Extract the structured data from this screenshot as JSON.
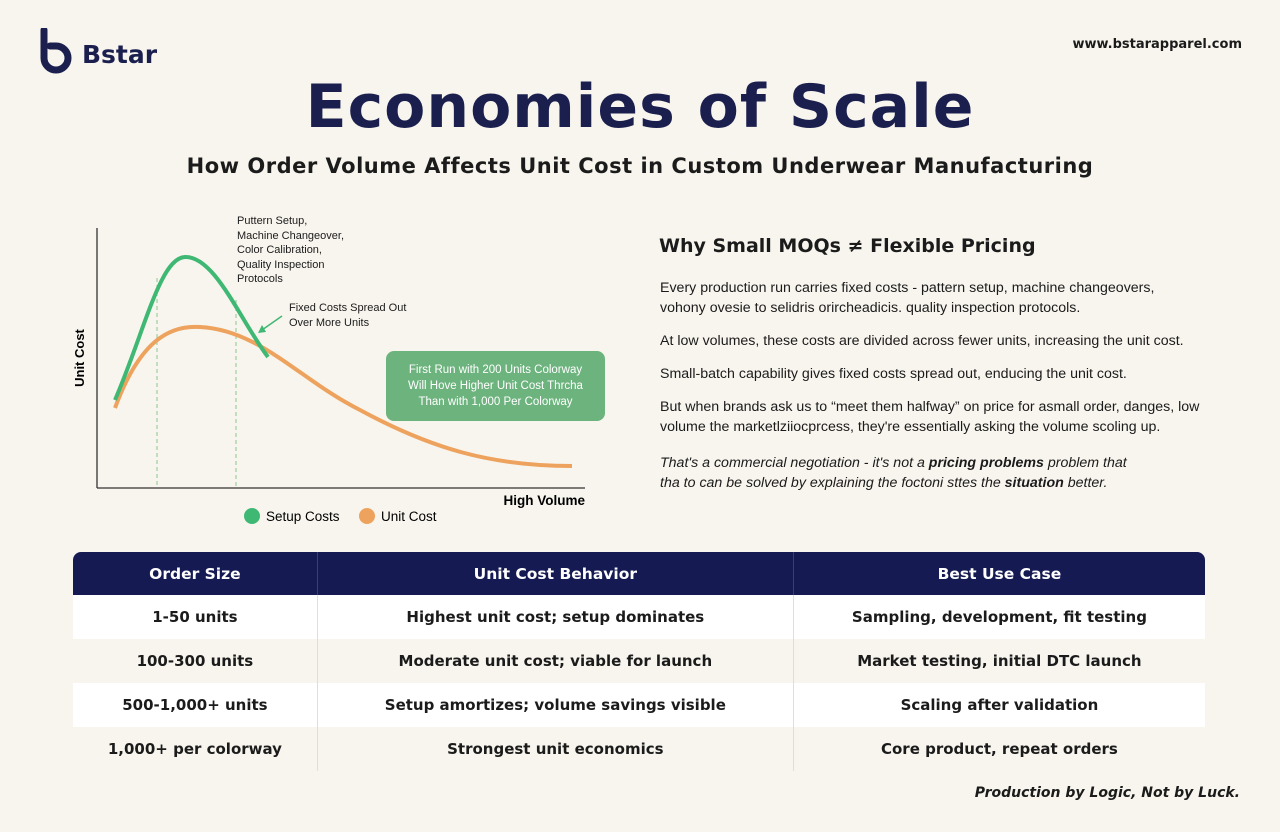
{
  "header": {
    "brand": "Bstar",
    "url": "www.bstarapparel.com",
    "title": "Economies of Scale",
    "subtitle": "How Order Volume Affects Unit Cost in Custom Underwear Manufacturing"
  },
  "diagram": {
    "y_axis_label": "Unit Cost",
    "x_axis_label": "High Volume",
    "annotation_setup": [
      "Puttern Setup,",
      "Machine Changeover,",
      "Color Calibration,",
      "Quality Inspection",
      "Protocols"
    ],
    "annotation_spread": [
      "Fixed Costs Spread Out",
      "Over More Units"
    ],
    "callout": [
      "First Run with 200 Units Colorway",
      "Will Hove Higher Unit Cost Thrcha",
      "Than with 1,000 Per Colorway"
    ],
    "legend": [
      "Setup Costs",
      "Unit Cost"
    ]
  },
  "article": {
    "heading": "Why Small MOQs ≠ Flexible Pricing",
    "paragraphs": [
      [
        "Every production run carries fixed costs - pattern setup, machine changeovers,",
        "vohony ovesie to selidris orircheadicis. quality inspection protocols."
      ],
      [
        "At low volumes, these costs are divided across fewer units, increasing the unit cost."
      ],
      [
        "Small-batch capability gives fixed costs spread out, enducing the unit cost."
      ],
      [
        "But when brands ask us to “meet them halfway” on price for asmall order, danges, low",
        "volume the marketlziiocprcess, they're essentially asking the volume scoling up."
      ]
    ],
    "closing": [
      [
        "That's a commercial negotiation - it's not a ",
        "pricing problems",
        " problem that"
      ],
      [
        "tha to can be solved by explaining the foctoni sttes the ",
        "situation",
        " better."
      ]
    ]
  },
  "table": {
    "columns": [
      "Order Size",
      "Unit Cost Behavior",
      "Best Use Case"
    ],
    "rows": [
      [
        "1-50 units",
        "Highest unit cost; setup dominates",
        "Sampling, development, fit testing"
      ],
      [
        "100-300 units",
        "Moderate unit cost; viable for launch",
        "Market testing, initial DTC launch"
      ],
      [
        "500-1,000+ units",
        "Setup amortizes; volume savings visible",
        "Scaling after validation"
      ],
      [
        "1,000+ per colorway",
        "Strongest unit economics",
        "Core product, repeat orders"
      ]
    ]
  },
  "footer": {
    "tagline": "Production by Logic, Not by Luck."
  }
}
